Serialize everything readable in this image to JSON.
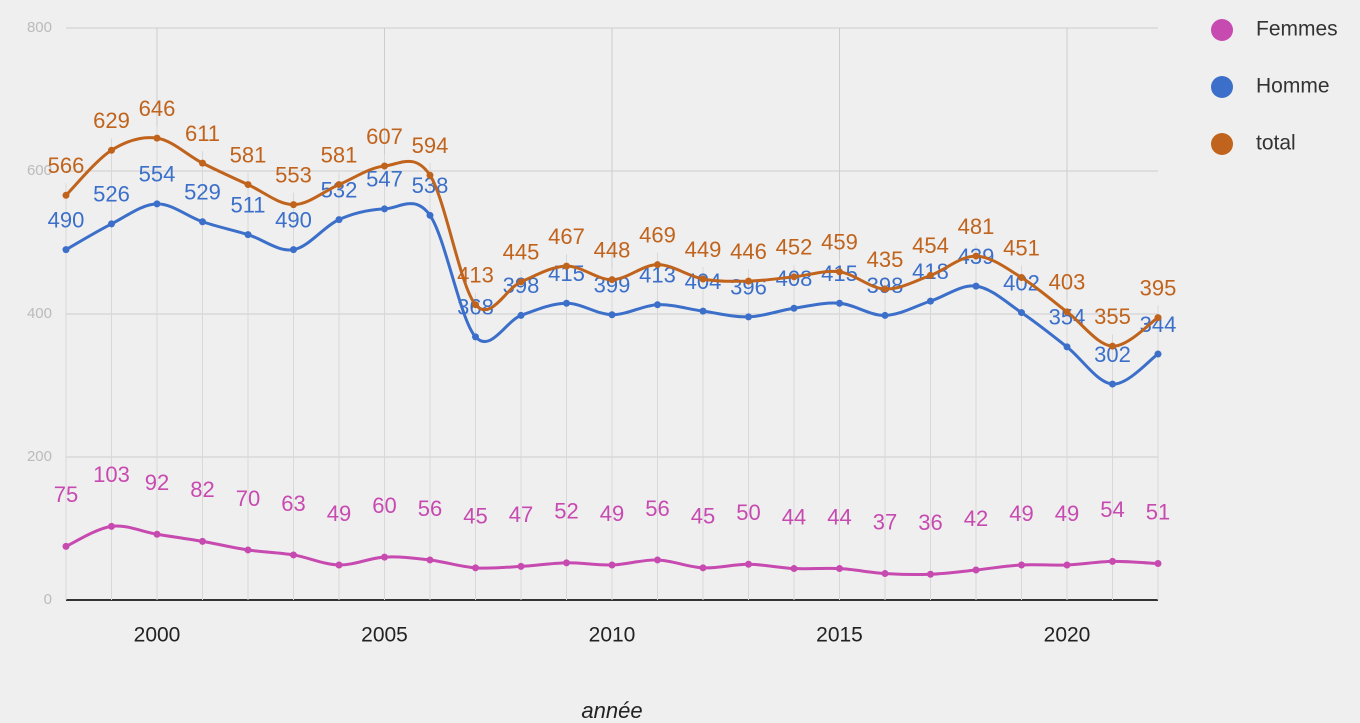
{
  "chart_data": {
    "type": "line",
    "x_label": "année",
    "x": [
      1998,
      1999,
      2000,
      2001,
      2002,
      2003,
      2004,
      2005,
      2006,
      2007,
      2008,
      2009,
      2010,
      2011,
      2012,
      2013,
      2014,
      2015,
      2016,
      2017,
      2018,
      2019,
      2020,
      2021,
      2022
    ],
    "xlim": [
      1998,
      2022
    ],
    "xticks": [
      2000,
      2005,
      2010,
      2015,
      2020
    ],
    "ylim": [
      0,
      800
    ],
    "yticks": [
      0,
      200,
      400,
      600,
      800
    ],
    "grid": true,
    "legend": "right",
    "series": [
      {
        "name": "Femmes",
        "color": "#c74ab0",
        "values": [
          75,
          103,
          92,
          82,
          70,
          63,
          49,
          60,
          56,
          45,
          47,
          52,
          49,
          56,
          45,
          50,
          44,
          44,
          37,
          36,
          42,
          49,
          49,
          54,
          51
        ]
      },
      {
        "name": "Homme",
        "color": "#3b6fc9",
        "values": [
          490,
          526,
          554,
          529,
          511,
          490,
          532,
          547,
          538,
          368,
          398,
          415,
          399,
          413,
          404,
          396,
          408,
          415,
          398,
          418,
          439,
          402,
          354,
          302,
          344
        ]
      },
      {
        "name": "total",
        "color": "#c0631c",
        "values": [
          566,
          629,
          646,
          611,
          581,
          553,
          581,
          607,
          594,
          413,
          445,
          467,
          448,
          469,
          449,
          446,
          452,
          459,
          435,
          454,
          481,
          451,
          403,
          355,
          395
        ]
      }
    ]
  }
}
